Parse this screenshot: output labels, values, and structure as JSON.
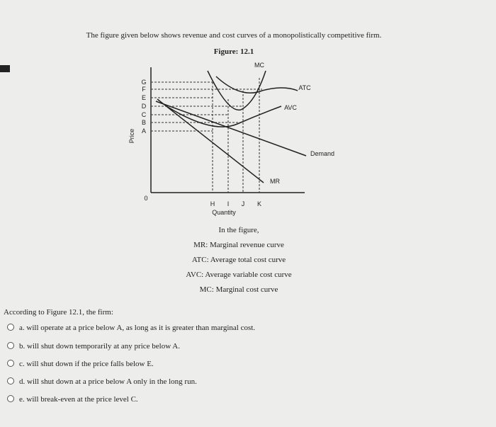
{
  "intro": "The figure given below shows revenue and cost curves of a monopolistically competitive firm.",
  "figure": {
    "title": "Figure: 12.1",
    "y_label": "Price",
    "x_label": "Quantity",
    "origin": "0",
    "price_levels": [
      "G",
      "F",
      "E",
      "D",
      "C",
      "B",
      "A"
    ],
    "quantity_levels": [
      "H",
      "I",
      "J",
      "K"
    ],
    "curves": {
      "mc": "MC",
      "atc": "ATC",
      "avc": "AVC",
      "demand": "Demand",
      "mr": "MR"
    }
  },
  "notes": [
    "In the figure,",
    "MR: Marginal revenue curve",
    "ATC: Average total cost curve",
    "AVC: Average variable cost curve",
    "MC: Marginal cost curve"
  ],
  "question": "According to Figure 12.1, the firm:",
  "options": [
    "a. will operate at a price below A, as long as it is greater than marginal cost.",
    "b. will shut down temporarily at any price below A.",
    "c. will shut down if the price falls below E.",
    "d. will shut down at a price below A only in the long run.",
    "e. will break-even at the price level C."
  ]
}
